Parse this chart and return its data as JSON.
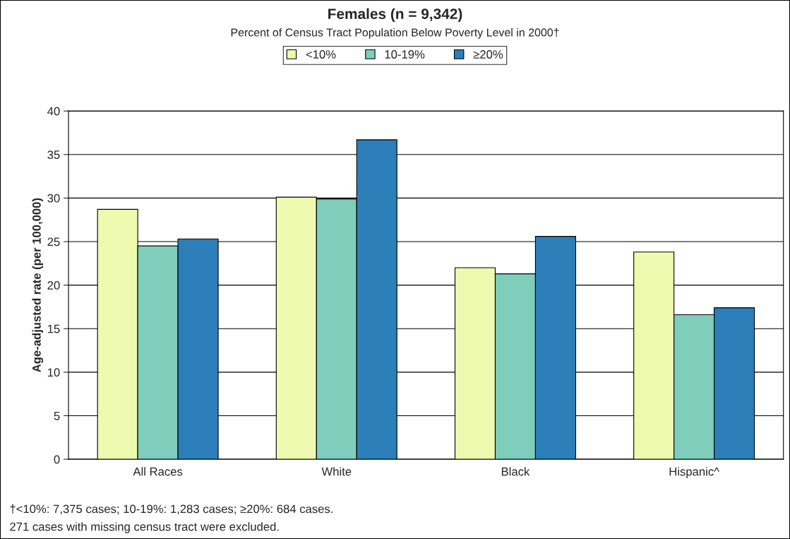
{
  "chart_data": {
    "type": "bar",
    "title": "Females (n = 9,342)",
    "subtitle": "Percent of Census Tract Population Below Poverty Level in 2000†",
    "ylabel": "Age-adjusted rate (per 100,000)",
    "categories": [
      "All Races",
      "White",
      "Black",
      "Hispanic^"
    ],
    "series": [
      {
        "name": "<10%",
        "color": "#eefaaf",
        "values": [
          28.7,
          30.1,
          22.0,
          23.8
        ]
      },
      {
        "name": "10-19%",
        "color": "#7fcdbb",
        "values": [
          24.5,
          29.9,
          21.3,
          16.6
        ]
      },
      {
        "name": "≥20%",
        "color": "#2c7fb8",
        "values": [
          25.3,
          36.7,
          25.6,
          17.4
        ]
      }
    ],
    "ylim": [
      0,
      40
    ],
    "yticks": [
      0,
      5,
      10,
      15,
      20,
      25,
      30,
      35,
      40
    ],
    "grid": "y",
    "legend": "top",
    "annotations": [
      "†<10%: 7,375 cases; 10-19%: 1,283 cases; ≥20%: 684 cases.",
      "271 cases with missing census tract were excluded."
    ]
  }
}
